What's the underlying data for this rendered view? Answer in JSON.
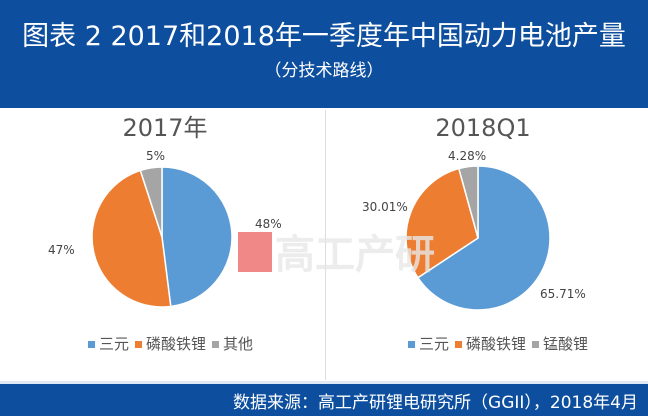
{
  "header": {
    "title": "图表 2  2017和2018年一季度年中国动力电池产量",
    "subtitle": "（分技术路线）"
  },
  "footer": {
    "source": "数据来源：高工产研锂电研究所（GGII），2018年4月"
  },
  "watermark": "G高工产研",
  "colors": {
    "header_bg": "#0d4f9e",
    "blue": "#5b9bd5",
    "orange": "#ed7d31",
    "gray": "#a5a5a5"
  },
  "chart_data": [
    {
      "type": "pie",
      "title": "2017年",
      "categories": [
        "三元",
        "磷酸铁锂",
        "其他"
      ],
      "values": [
        48,
        47,
        5
      ],
      "labels": [
        "48%",
        "47%",
        "5%"
      ],
      "colors": [
        "#5b9bd5",
        "#ed7d31",
        "#a5a5a5"
      ],
      "legend": "bottom"
    },
    {
      "type": "pie",
      "title": "2018Q1",
      "categories": [
        "三元",
        "磷酸铁锂",
        "锰酸锂"
      ],
      "values": [
        65.71,
        30.01,
        4.28
      ],
      "labels": [
        "65.71%",
        "30.01%",
        "4.28%"
      ],
      "colors": [
        "#5b9bd5",
        "#ed7d31",
        "#a5a5a5"
      ],
      "legend": "bottom"
    }
  ]
}
